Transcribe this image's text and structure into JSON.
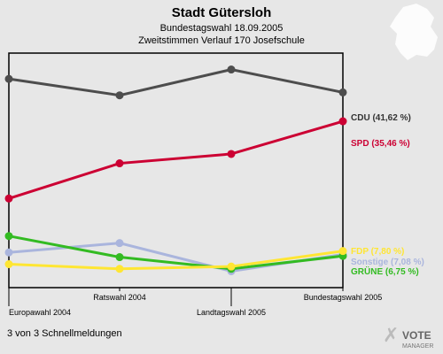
{
  "chart_data": {
    "type": "line",
    "title": "Stadt Gütersloh",
    "subtitle_1": "Bundestagswahl 18.09.2005",
    "subtitle_2": "Zweitstimmen Verlauf 170 Josefschule",
    "categories": [
      "Europawahl 2004",
      "Ratswahl 2004",
      "Landtagswahl 2005",
      "Bundestagswahl 2005"
    ],
    "ylim": [
      0,
      50
    ],
    "series": [
      {
        "name": "CDU",
        "color": "#4d4d4d",
        "values": [
          44.5,
          41.0,
          46.5,
          41.62
        ],
        "end_label": "CDU (41,62 %)"
      },
      {
        "name": "SPD",
        "color": "#cc0033",
        "values": [
          19.0,
          26.5,
          28.5,
          35.46
        ],
        "end_label": "SPD (35,46 %)"
      },
      {
        "name": "FDP",
        "color": "#ffe633",
        "values": [
          5.0,
          4.0,
          4.5,
          7.8
        ],
        "end_label": "FDP (7,80 %)"
      },
      {
        "name": "Sonstige",
        "color": "#aab5dd",
        "values": [
          7.5,
          9.5,
          3.5,
          7.08
        ],
        "end_label": "Sonstige (7,08 %)"
      },
      {
        "name": "GRÜNE",
        "color": "#33bb22",
        "values": [
          11.0,
          6.5,
          4.0,
          6.75
        ],
        "end_label": "GRÜNE (6,75 %)"
      }
    ]
  },
  "footer": {
    "note": "3 von 3 Schnellmeldungen"
  },
  "logo": {
    "line1": "VOTE",
    "line2": "MANAGER"
  }
}
